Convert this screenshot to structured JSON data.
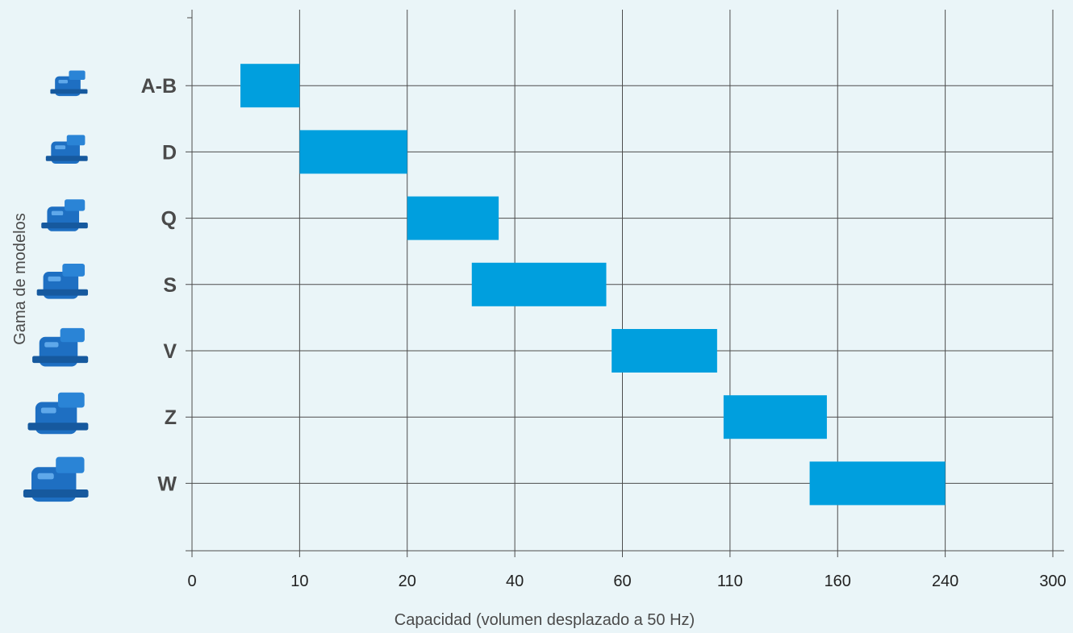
{
  "chart_data": {
    "type": "bar",
    "orientation": "horizontal-range",
    "xlabel": "Capacidad (volumen desplazado a 50 Hz)",
    "ylabel": "Gama de modelos",
    "x_ticks": [
      "0",
      "10",
      "20",
      "40",
      "60",
      "110",
      "160",
      "240",
      "300"
    ],
    "categories": [
      "A-B",
      "D",
      "Q",
      "S",
      "V",
      "Z",
      "W"
    ],
    "ranges": [
      {
        "model": "A-B",
        "start": 4.5,
        "end": 10
      },
      {
        "model": "D",
        "start": 10,
        "end": 20
      },
      {
        "model": "Q",
        "start": 20,
        "end": 37
      },
      {
        "model": "S",
        "start": 32,
        "end": 57
      },
      {
        "model": "V",
        "start": 58,
        "end": 104
      },
      {
        "model": "Z",
        "start": 107,
        "end": 155
      },
      {
        "model": "W",
        "start": 147,
        "end": 240
      }
    ],
    "grid": true,
    "colors": {
      "bar": "#009fde",
      "grid": "#4d4d4d",
      "background": "#eaf5f8",
      "compressor_icon": "#1e6fc2"
    },
    "row_icons": [
      "compressor-icon",
      "compressor-icon",
      "compressor-icon",
      "compressor-icon",
      "compressor-icon",
      "compressor-icon",
      "compressor-icon"
    ]
  }
}
